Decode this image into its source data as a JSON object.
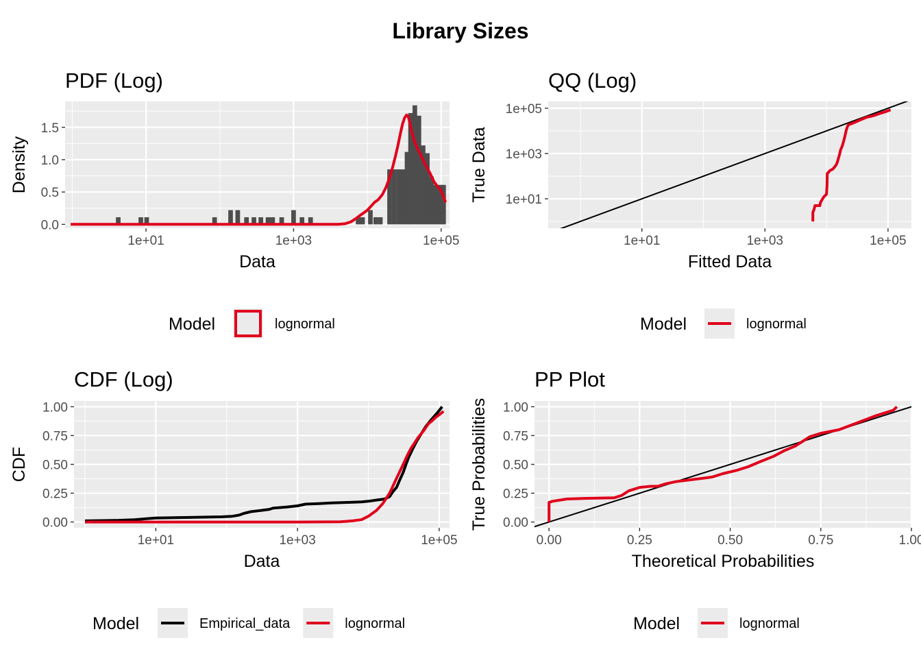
{
  "page_title": "Library Sizes",
  "colors": {
    "model": "#E0001B",
    "empirical": "#000000",
    "panel": "#EBEBEB",
    "grid": "#FFFFFF",
    "hist": "#4D4D4D"
  },
  "chart_data": [
    {
      "id": "pdf",
      "type": "bar",
      "title": "PDF (Log)",
      "xlabel": "Data",
      "ylabel": "Density",
      "x_scale": "log10",
      "xlim": [
        0.8,
        130000
      ],
      "ylim": [
        -0.06,
        1.9
      ],
      "x_ticks": [
        10,
        1000,
        100000
      ],
      "x_tick_labels": [
        "1e+01",
        "1e+03",
        "1e+05"
      ],
      "y_ticks": [
        0,
        0.5,
        1.0,
        1.5
      ],
      "y_tick_labels": [
        "0.0",
        "0.5",
        "1.0",
        "1.5"
      ],
      "histogram": {
        "log10_bin_width": 0.0625,
        "bins": [
          [
            4.2,
            0.11
          ],
          [
            8.5,
            0.11
          ],
          [
            10.2,
            0.11
          ],
          [
            85,
            0.11
          ],
          [
            140,
            0.22
          ],
          [
            175,
            0.22
          ],
          [
            230,
            0.11
          ],
          [
            290,
            0.11
          ],
          [
            360,
            0.11
          ],
          [
            450,
            0.11
          ],
          [
            520,
            0.11
          ],
          [
            690,
            0.11
          ],
          [
            1000,
            0.22
          ],
          [
            1300,
            0.11
          ],
          [
            1700,
            0.11
          ],
          [
            7500,
            0.11
          ],
          [
            8600,
            0.11
          ],
          [
            11000,
            0.22
          ],
          [
            13000,
            0.11
          ],
          [
            15000,
            0.11
          ],
          [
            20000,
            0.85
          ],
          [
            23000,
            0.85
          ],
          [
            26500,
            0.85
          ],
          [
            30500,
            0.85
          ],
          [
            34500,
            1.12
          ],
          [
            38500,
            1.72
          ],
          [
            44000,
            1.84
          ],
          [
            50000,
            1.68
          ],
          [
            57000,
            1.22
          ],
          [
            65000,
            1.1
          ],
          [
            74000,
            0.74
          ],
          [
            85000,
            0.61
          ],
          [
            97000,
            0.61
          ],
          [
            108000,
            0.61
          ]
        ]
      },
      "series": [
        {
          "name": "lognormal",
          "type": "line",
          "points": [
            [
              0.95,
              0
            ],
            [
              1000,
              0
            ],
            [
              4000,
              0
            ],
            [
              5000,
              0.01
            ],
            [
              6000,
              0.04
            ],
            [
              7000,
              0.09
            ],
            [
              8000,
              0.14
            ],
            [
              9000,
              0.18
            ],
            [
              10000,
              0.22
            ],
            [
              11000,
              0.27
            ],
            [
              12500,
              0.34
            ],
            [
              14000,
              0.38
            ],
            [
              16000,
              0.46
            ],
            [
              18000,
              0.58
            ],
            [
              20000,
              0.72
            ],
            [
              22000,
              0.88
            ],
            [
              24000,
              1.05
            ],
            [
              26000,
              1.22
            ],
            [
              28000,
              1.4
            ],
            [
              30000,
              1.55
            ],
            [
              32000,
              1.65
            ],
            [
              34000,
              1.69
            ],
            [
              36000,
              1.66
            ],
            [
              38000,
              1.55
            ],
            [
              40000,
              1.42
            ],
            [
              45000,
              1.24
            ],
            [
              50000,
              1.13
            ],
            [
              55000,
              1.03
            ],
            [
              60000,
              0.94
            ],
            [
              70000,
              0.8
            ],
            [
              80000,
              0.66
            ],
            [
              90000,
              0.58
            ],
            [
              100000,
              0.52
            ],
            [
              115000,
              0.34
            ]
          ]
        }
      ],
      "legend": {
        "title": "Model",
        "keys": [
          {
            "label": "lognormal",
            "key": "outlined-box"
          }
        ]
      }
    },
    {
      "id": "qq",
      "type": "line",
      "title": "QQ (Log)",
      "xlabel": "Fitted Data",
      "ylabel": "True Data",
      "x_scale": "log10",
      "y_scale": "log10",
      "xlim": [
        0.3,
        240000
      ],
      "ylim": [
        0.5,
        200000
      ],
      "x_ticks": [
        10,
        1000,
        100000
      ],
      "x_tick_labels": [
        "1e+01",
        "1e+03",
        "1e+05"
      ],
      "y_ticks": [
        10,
        1000,
        100000
      ],
      "y_tick_labels": [
        "1e+01",
        "1e+03",
        "1e+05"
      ],
      "reference_line": "y = x",
      "series": [
        {
          "name": "lognormal",
          "type": "line",
          "points": [
            [
              6000,
              1
            ],
            [
              6000,
              2.5
            ],
            [
              6300,
              3.5
            ],
            [
              6500,
              5
            ],
            [
              7800,
              5
            ],
            [
              8000,
              7
            ],
            [
              9000,
              12
            ],
            [
              10000,
              16
            ],
            [
              10200,
              40
            ],
            [
              10300,
              130
            ],
            [
              11500,
              180
            ],
            [
              12500,
              200
            ],
            [
              13500,
              250
            ],
            [
              14500,
              330
            ],
            [
              15000,
              420
            ],
            [
              15600,
              600
            ],
            [
              16300,
              900
            ],
            [
              17000,
              1500
            ],
            [
              18000,
              2100
            ],
            [
              19000,
              3500
            ],
            [
              20000,
              6000
            ],
            [
              21000,
              11000
            ],
            [
              22000,
              16000
            ],
            [
              23000,
              19000
            ],
            [
              25000,
              20500
            ],
            [
              28000,
              23000
            ],
            [
              32000,
              27000
            ],
            [
              38000,
              33000
            ],
            [
              45000,
              40000
            ],
            [
              55000,
              45000
            ],
            [
              65000,
              52000
            ],
            [
              75000,
              60000
            ],
            [
              90000,
              70000
            ],
            [
              110000,
              85000
            ]
          ]
        }
      ],
      "legend": {
        "title": "Model",
        "keys": [
          {
            "label": "lognormal",
            "key": "line"
          }
        ]
      }
    },
    {
      "id": "cdf",
      "type": "line",
      "title": "CDF (Log)",
      "xlabel": "Data",
      "ylabel": "CDF",
      "x_scale": "log10",
      "xlim": [
        0.7,
        140000
      ],
      "ylim": [
        -0.05,
        1.05
      ],
      "x_ticks": [
        10,
        1000,
        100000
      ],
      "x_tick_labels": [
        "1e+01",
        "1e+03",
        "1e+05"
      ],
      "y_ticks": [
        0,
        0.25,
        0.5,
        0.75,
        1.0
      ],
      "y_tick_labels": [
        "0.00",
        "0.25",
        "0.50",
        "0.75",
        "1.00"
      ],
      "series": [
        {
          "name": "Empirical_data",
          "type": "line",
          "points": [
            [
              1,
              0.01
            ],
            [
              3,
              0.015
            ],
            [
              5,
              0.02
            ],
            [
              8,
              0.03
            ],
            [
              10,
              0.035
            ],
            [
              30,
              0.04
            ],
            [
              85,
              0.045
            ],
            [
              120,
              0.05
            ],
            [
              150,
              0.06
            ],
            [
              175,
              0.075
            ],
            [
              220,
              0.09
            ],
            [
              300,
              0.1
            ],
            [
              400,
              0.11
            ],
            [
              450,
              0.12
            ],
            [
              700,
              0.13
            ],
            [
              1000,
              0.14
            ],
            [
              1300,
              0.155
            ],
            [
              2000,
              0.16
            ],
            [
              3000,
              0.165
            ],
            [
              5000,
              0.17
            ],
            [
              8000,
              0.175
            ],
            [
              10000,
              0.18
            ],
            [
              13000,
              0.19
            ],
            [
              17000,
              0.2
            ],
            [
              20000,
              0.22
            ],
            [
              22000,
              0.26
            ],
            [
              25000,
              0.3
            ],
            [
              28000,
              0.37
            ],
            [
              31000,
              0.43
            ],
            [
              34000,
              0.5
            ],
            [
              37000,
              0.56
            ],
            [
              42000,
              0.63
            ],
            [
              48000,
              0.7
            ],
            [
              55000,
              0.76
            ],
            [
              65000,
              0.83
            ],
            [
              78000,
              0.89
            ],
            [
              95000,
              0.95
            ],
            [
              110000,
              1.0
            ]
          ]
        },
        {
          "name": "lognormal",
          "type": "line",
          "points": [
            [
              1,
              0
            ],
            [
              1000,
              0
            ],
            [
              4000,
              0.002
            ],
            [
              6000,
              0.01
            ],
            [
              8000,
              0.02
            ],
            [
              10000,
              0.05
            ],
            [
              13000,
              0.1
            ],
            [
              16000,
              0.16
            ],
            [
              20000,
              0.25
            ],
            [
              25000,
              0.38
            ],
            [
              30000,
              0.48
            ],
            [
              35000,
              0.57
            ],
            [
              40000,
              0.64
            ],
            [
              50000,
              0.73
            ],
            [
              60000,
              0.79
            ],
            [
              70000,
              0.85
            ],
            [
              80000,
              0.88
            ],
            [
              90000,
              0.91
            ],
            [
              100000,
              0.93
            ],
            [
              115000,
              0.96
            ]
          ]
        }
      ],
      "legend": {
        "title": "Model",
        "keys": [
          {
            "label": "Empirical_data",
            "key": "line-black"
          },
          {
            "label": "lognormal",
            "key": "line"
          }
        ]
      }
    },
    {
      "id": "pp",
      "type": "line",
      "title": "PP Plot",
      "xlabel": "Theoretical Probabilities",
      "ylabel": "True Probabilities",
      "xlim": [
        -0.04,
        1.0
      ],
      "ylim": [
        -0.05,
        1.05
      ],
      "x_ticks": [
        0,
        0.25,
        0.5,
        0.75,
        1.0
      ],
      "x_tick_labels": [
        "0.00",
        "0.25",
        "0.50",
        "0.75",
        "1.00"
      ],
      "y_ticks": [
        0,
        0.25,
        0.5,
        0.75,
        1.0
      ],
      "y_tick_labels": [
        "0.00",
        "0.25",
        "0.50",
        "0.75",
        "1.00"
      ],
      "reference_line": "y = x",
      "series": [
        {
          "name": "lognormal",
          "type": "line",
          "points": [
            [
              0,
              0
            ],
            [
              0,
              0.17
            ],
            [
              0.01,
              0.18
            ],
            [
              0.05,
              0.2
            ],
            [
              0.1,
              0.205
            ],
            [
              0.18,
              0.21
            ],
            [
              0.2,
              0.23
            ],
            [
              0.22,
              0.27
            ],
            [
              0.25,
              0.3
            ],
            [
              0.28,
              0.31
            ],
            [
              0.3,
              0.31
            ],
            [
              0.32,
              0.33
            ],
            [
              0.35,
              0.35
            ],
            [
              0.4,
              0.37
            ],
            [
              0.45,
              0.39
            ],
            [
              0.48,
              0.42
            ],
            [
              0.52,
              0.45
            ],
            [
              0.55,
              0.48
            ],
            [
              0.58,
              0.52
            ],
            [
              0.62,
              0.57
            ],
            [
              0.65,
              0.62
            ],
            [
              0.68,
              0.66
            ],
            [
              0.7,
              0.7
            ],
            [
              0.72,
              0.74
            ],
            [
              0.75,
              0.77
            ],
            [
              0.8,
              0.8
            ],
            [
              0.85,
              0.86
            ],
            [
              0.9,
              0.92
            ],
            [
              0.95,
              0.97
            ],
            [
              0.96,
              1.0
            ]
          ]
        }
      ],
      "legend": {
        "title": "Model",
        "keys": [
          {
            "label": "lognormal",
            "key": "line"
          }
        ]
      }
    }
  ]
}
